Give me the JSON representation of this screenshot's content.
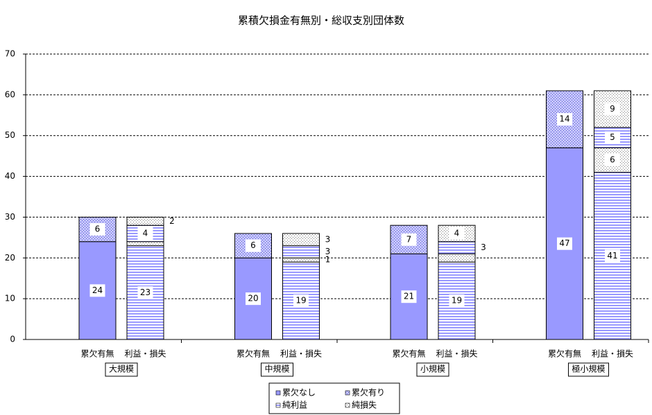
{
  "chart_data": {
    "type": "grouped-stacked-bar",
    "title": "累積欠損金有無別・総収支別団体数",
    "groups": [
      "大規模",
      "中規模",
      "小規模",
      "極小規模"
    ],
    "bar_labels": [
      "累欠有無",
      "利益・損失"
    ],
    "series": [
      {
        "name": "累欠なし",
        "color": "#9999ff",
        "pattern": "solid",
        "bar": 0,
        "values": [
          24,
          20,
          21,
          47
        ]
      },
      {
        "name": "累欠有り",
        "color": "#9999ff",
        "pattern": "crosshatch",
        "bar": 0,
        "values": [
          6,
          6,
          7,
          14
        ]
      },
      {
        "name": "純利益",
        "color": "#9999ff",
        "pattern": "hstripe",
        "bar": 1,
        "values": [
          [
            23,
            4
          ],
          [
            19,
            3
          ],
          [
            19,
            3
          ],
          [
            41,
            5
          ]
        ]
      },
      {
        "name": "純損失",
        "color": "#9999ff",
        "pattern": "dots",
        "bar": 1,
        "values": [
          [
            1,
            2
          ],
          [
            1,
            3
          ],
          [
            2,
            4
          ],
          [
            6,
            9
          ]
        ],
        "value_labels": [
          [
            null,
            "2"
          ],
          [
            "1",
            "3"
          ],
          [
            null,
            "4"
          ],
          [
            "6",
            "9"
          ]
        ]
      }
    ],
    "ylim": [
      0,
      70
    ],
    "yticks": [
      0,
      10,
      20,
      30,
      40,
      50,
      60,
      70
    ],
    "grid": true
  }
}
